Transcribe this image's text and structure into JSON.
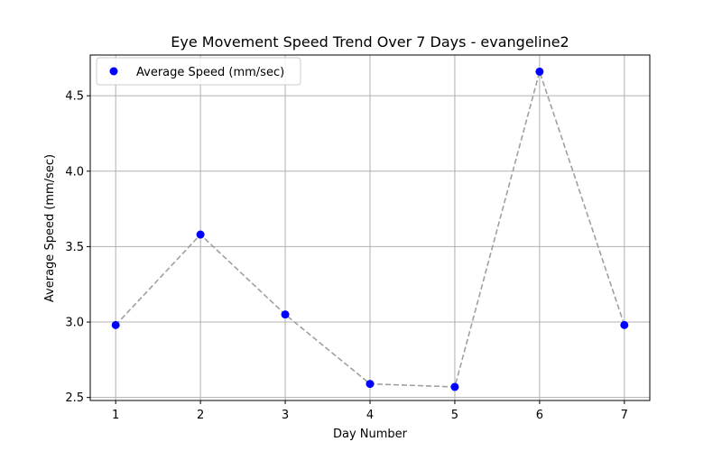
{
  "chart_data": {
    "type": "scatter",
    "title": "Eye Movement Speed Trend Over 7 Days - evangeline2",
    "xlabel": "Day Number",
    "ylabel": "Average Speed (mm/sec)",
    "x": [
      1,
      2,
      3,
      4,
      5,
      6,
      7
    ],
    "xticks": [
      "1",
      "2",
      "3",
      "4",
      "5",
      "6",
      "7"
    ],
    "yticks": [
      "2.5",
      "3.0",
      "3.5",
      "4.0",
      "4.5"
    ],
    "xlim": [
      0.7,
      7.3
    ],
    "ylim": [
      2.48,
      4.77
    ],
    "grid": true,
    "legend_position": "upper-left",
    "series": [
      {
        "name": "Average Speed (mm/sec)",
        "values": [
          2.98,
          3.58,
          3.05,
          2.59,
          2.57,
          4.66,
          2.98
        ],
        "marker_color": "#0000ff",
        "line_color": "#a0a0a0",
        "line_style": "dashed"
      }
    ]
  }
}
